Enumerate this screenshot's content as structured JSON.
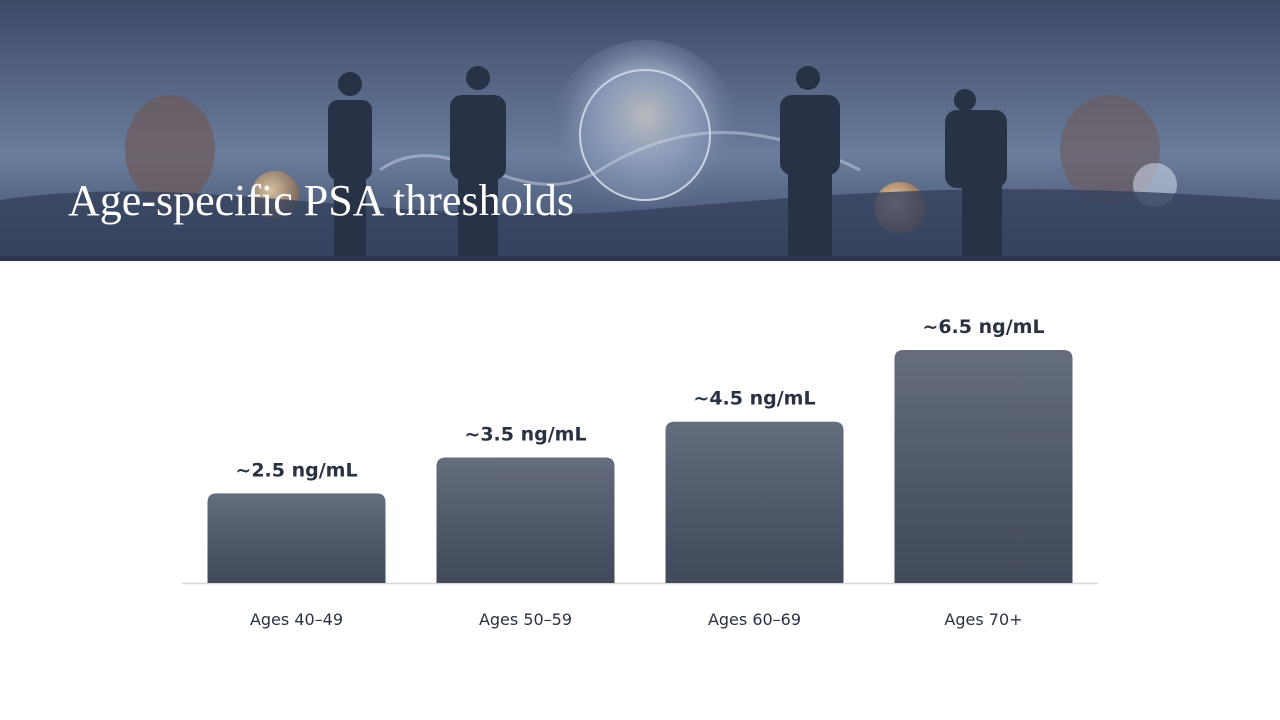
{
  "chart_data": {
    "type": "bar",
    "title": "Age-specific PSA thresholds",
    "categories": [
      "Ages 40–49",
      "Ages 50–59",
      "Ages 60–69",
      "Ages 70+"
    ],
    "values": [
      2.5,
      3.5,
      4.5,
      6.5
    ],
    "value_labels": [
      "~2.5 ng/mL",
      "~3.5 ng/mL",
      "~4.5 ng/mL",
      "~6.5 ng/mL"
    ],
    "color": "#4a5468"
  }
}
